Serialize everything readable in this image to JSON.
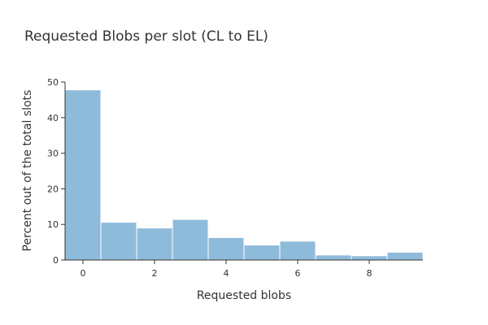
{
  "chart_data": {
    "type": "bar",
    "title": "Requested Blobs per slot (CL to EL)",
    "xlabel": "Requested blobs",
    "ylabel": "Percent out of the total slots",
    "categories": [
      0,
      1,
      2,
      3,
      4,
      5,
      6,
      7,
      8,
      9
    ],
    "values": [
      47.8,
      10.6,
      9.0,
      11.4,
      6.3,
      4.2,
      5.3,
      1.4,
      1.2,
      2.2
    ],
    "xlim": [
      -0.5,
      9.5
    ],
    "ylim": [
      0,
      50
    ],
    "xticks": [
      0,
      2,
      4,
      6,
      8
    ],
    "yticks": [
      0,
      10,
      20,
      30,
      40,
      50
    ],
    "grid": false,
    "bar_color": "#8fbbdb",
    "bar_edge_color": "#ffffff"
  }
}
